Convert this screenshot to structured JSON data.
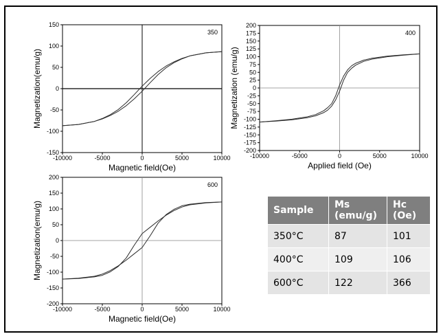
{
  "chart_data": [
    {
      "type": "line",
      "panel_label": "350",
      "xlabel": "Magnetic field(Oe)",
      "ylabel": "Magnetization(emu/g)",
      "xlim": [
        -10000,
        10000
      ],
      "ylim": [
        -150,
        150
      ],
      "xticks": [
        -10000,
        -5000,
        0,
        5000,
        10000
      ],
      "yticks": [
        -150,
        -100,
        -50,
        0,
        50,
        100,
        150
      ],
      "grid": false,
      "series": [
        {
          "x": [
            -10000,
            -8000,
            -6000,
            -5000,
            -4000,
            -3000,
            -2000,
            -1000,
            0,
            1000,
            2000,
            3000,
            4000,
            5000,
            6000,
            8000,
            10000
          ],
          "y": [
            -87,
            -84,
            -77,
            -71,
            -63,
            -53,
            -40,
            -24,
            -6,
            14,
            33,
            49,
            61,
            70,
            77,
            84,
            87
          ]
        },
        {
          "x": [
            10000,
            8000,
            6000,
            5000,
            4000,
            3000,
            2000,
            1000,
            0,
            -1000,
            -2000,
            -3000,
            -4000,
            -5000,
            -6000,
            -8000,
            -10000
          ],
          "y": [
            87,
            84,
            77,
            71,
            63,
            53,
            40,
            24,
            6,
            -14,
            -33,
            -49,
            -61,
            -70,
            -77,
            -84,
            -87
          ]
        }
      ]
    },
    {
      "type": "line",
      "panel_label": "400",
      "xlabel": "Applied field (Oe)",
      "ylabel": "Magnetization (emu/g)",
      "xlim": [
        -10000,
        10000
      ],
      "ylim": [
        -200,
        200
      ],
      "xticks": [
        -10000,
        -5000,
        0,
        5000,
        10000
      ],
      "yticks": [
        -200,
        -175,
        -150,
        -125,
        -100,
        -75,
        -50,
        -25,
        0,
        25,
        50,
        75,
        100,
        125,
        150,
        175,
        200
      ],
      "grid": false,
      "series": [
        {
          "x": [
            -10000,
            -8000,
            -6000,
            -4000,
            -3000,
            -2000,
            -1500,
            -1000,
            -500,
            0,
            500,
            1000,
            1500,
            2000,
            3000,
            4000,
            6000,
            8000,
            10000
          ],
          "y": [
            -109,
            -106,
            -102,
            -95,
            -89,
            -79,
            -71,
            -58,
            -38,
            -10,
            25,
            50,
            63,
            73,
            85,
            92,
            100,
            105,
            109
          ]
        },
        {
          "x": [
            10000,
            8000,
            6000,
            4000,
            3000,
            2000,
            1500,
            1000,
            500,
            0,
            -500,
            -1000,
            -1500,
            -2000,
            -3000,
            -4000,
            -6000,
            -8000,
            -10000
          ],
          "y": [
            109,
            106,
            102,
            95,
            89,
            79,
            71,
            58,
            38,
            10,
            -25,
            -50,
            -63,
            -73,
            -85,
            -92,
            -100,
            -105,
            -109
          ]
        }
      ]
    },
    {
      "type": "line",
      "panel_label": "600",
      "xlabel": "Magnetic field(Oe)",
      "ylabel": "Magnetization(emu/g)",
      "xlim": [
        -10000,
        10000
      ],
      "ylim": [
        -200,
        200
      ],
      "xticks": [
        -10000,
        -5000,
        0,
        5000,
        10000
      ],
      "yticks": [
        -200,
        -150,
        -100,
        -50,
        0,
        50,
        100,
        150,
        200
      ],
      "grid": false,
      "series": [
        {
          "x": [
            -10000,
            -8000,
            -6000,
            -5000,
            -4000,
            -3000,
            -2000,
            -1000,
            0,
            1000,
            2000,
            3000,
            4000,
            5000,
            6000,
            8000,
            10000
          ],
          "y": [
            -122,
            -119,
            -113,
            -106,
            -95,
            -80,
            -62,
            -42,
            -22,
            15,
            55,
            82,
            99,
            110,
            115,
            120,
            122
          ]
        },
        {
          "x": [
            10000,
            8000,
            6000,
            5000,
            4000,
            3000,
            2000,
            1000,
            0,
            -1000,
            -2000,
            -3000,
            -4000,
            -5000,
            -6000,
            -8000,
            -10000
          ],
          "y": [
            122,
            119,
            113,
            106,
            95,
            80,
            62,
            42,
            22,
            -15,
            -55,
            -82,
            -99,
            -110,
            -115,
            -120,
            -122
          ]
        }
      ]
    }
  ],
  "table": {
    "headers": [
      {
        "line1": "Sample",
        "line2": ""
      },
      {
        "line1": "Ms",
        "line2": "(emu/g)"
      },
      {
        "line1": "Hc",
        "line2": "(Oe)"
      }
    ],
    "rows": [
      [
        "350°C",
        "87",
        "101"
      ],
      [
        "400°C",
        "109",
        "106"
      ],
      [
        "600°C",
        "122",
        "366"
      ]
    ]
  },
  "colors": {
    "line": "#2b2b2b",
    "axis": "#000000",
    "table_header": "#7f7f7f",
    "table_cell": "#e4e4e4"
  }
}
